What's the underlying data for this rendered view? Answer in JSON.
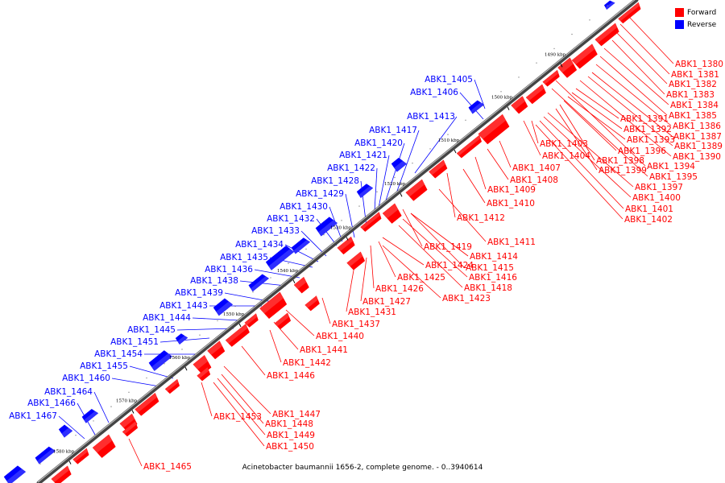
{
  "colors": {
    "forward": "#ff0000",
    "reverse": "#0000ff",
    "backbone": "#666666"
  },
  "legend": {
    "forward_label": "Forward",
    "reverse_label": "Reverse"
  },
  "caption": "Acinetobacter baumannii 1656-2, complete genome. - 0..3940614",
  "ticks": [
    "1490 kbp",
    "1500 kbp",
    "1510 kbp",
    "1520 kbp",
    "1530 kbp",
    "1540 kbp",
    "1550 kbp",
    "1560 kbp",
    "1570 kbp",
    "1580 kbp"
  ],
  "forward_labels": [
    "ABK1_1380",
    "ABK1_1381",
    "ABK1_1382",
    "ABK1_1383",
    "ABK1_1384",
    "ABK1_1385",
    "ABK1_1386",
    "ABK1_1387",
    "ABK1_1389",
    "ABK1_1390",
    "ABK1_1391",
    "ABK1_1392",
    "ABK1_1393",
    "ABK1_1396",
    "ABK1_1398",
    "ABK1_1399",
    "ABK1_1394",
    "ABK1_1395",
    "ABK1_1397",
    "ABK1_1400",
    "ABK1_1401",
    "ABK1_1402",
    "ABK1_1403",
    "ABK1_1404",
    "ABK1_1407",
    "ABK1_1408",
    "ABK1_1409",
    "ABK1_1410",
    "ABK1_1412",
    "ABK1_1411",
    "ABK1_1419",
    "ABK1_1414",
    "ABK1_1415",
    "ABK1_1416",
    "ABK1_1418",
    "ABK1_1424",
    "ABK1_1425",
    "ABK1_1426",
    "ABK1_1423",
    "ABK1_1427",
    "ABK1_1431",
    "ABK1_1437",
    "ABK1_1440",
    "ABK1_1441",
    "ABK1_1442",
    "ABK1_1446",
    "ABK1_1447",
    "ABK1_1453",
    "ABK1_1448",
    "ABK1_1449",
    "ABK1_1450",
    "ABK1_1465"
  ],
  "reverse_labels": [
    "ABK1_1405",
    "ABK1_1406",
    "ABK1_1413",
    "ABK1_1417",
    "ABK1_1420",
    "ABK1_1421",
    "ABK1_1422",
    "ABK1_1428",
    "ABK1_1429",
    "ABK1_1430",
    "ABK1_1432",
    "ABK1_1433",
    "ABK1_1434",
    "ABK1_1435",
    "ABK1_1436",
    "ABK1_1438",
    "ABK1_1439",
    "ABK1_1443",
    "ABK1_1444",
    "ABK1_1445",
    "ABK1_1451",
    "ABK1_1454",
    "ABK1_1455",
    "ABK1_1460",
    "ABK1_1464",
    "ABK1_1466",
    "ABK1_1467"
  ]
}
